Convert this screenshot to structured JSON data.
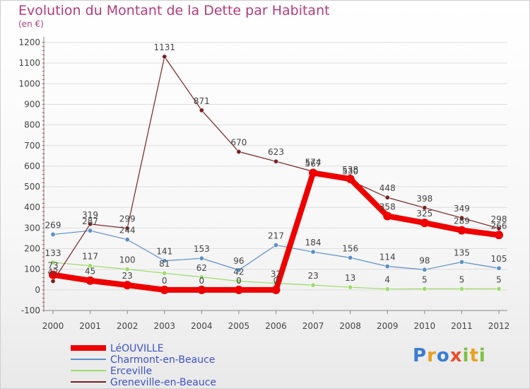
{
  "title": "Evolution du Montant de la Dette par Habitant",
  "unit": "(en €)",
  "brand": "Proxiti",
  "chart_data": {
    "type": "line",
    "x": [
      "2000",
      "2001",
      "2002",
      "2003",
      "2004",
      "2005",
      "2006",
      "2007",
      "2008",
      "2009",
      "2010",
      "2011",
      "2012"
    ],
    "ylim": [
      -100,
      1200
    ],
    "yticks": [
      -100,
      0,
      100,
      200,
      300,
      400,
      500,
      600,
      700,
      800,
      900,
      1000,
      1100,
      1200
    ],
    "grid": "horizontal",
    "legend_position": "bottom-left",
    "series": [
      {
        "name": "LéOUVILLE",
        "color": "#ee0000",
        "values": [
          73,
          45,
          23,
          0,
          0,
          0,
          0,
          567,
          538,
          358,
          325,
          289,
          266
        ]
      },
      {
        "name": "Charmont-en-Beauce",
        "color": "#5b8fc8",
        "values": [
          269,
          287,
          244,
          141,
          153,
          96,
          217,
          184,
          156,
          114,
          98,
          135,
          105
        ]
      },
      {
        "name": "Erceville",
        "color": "#99dd66",
        "values": [
          133,
          117,
          100,
          81,
          62,
          42,
          32,
          23,
          13,
          4,
          5,
          5,
          5
        ]
      },
      {
        "name": "Greneville-en-Beauce",
        "color": "#7a2020",
        "values": [
          42,
          319,
          299,
          1131,
          871,
          670,
          623,
          574,
          530,
          448,
          398,
          349,
          298
        ]
      }
    ]
  }
}
